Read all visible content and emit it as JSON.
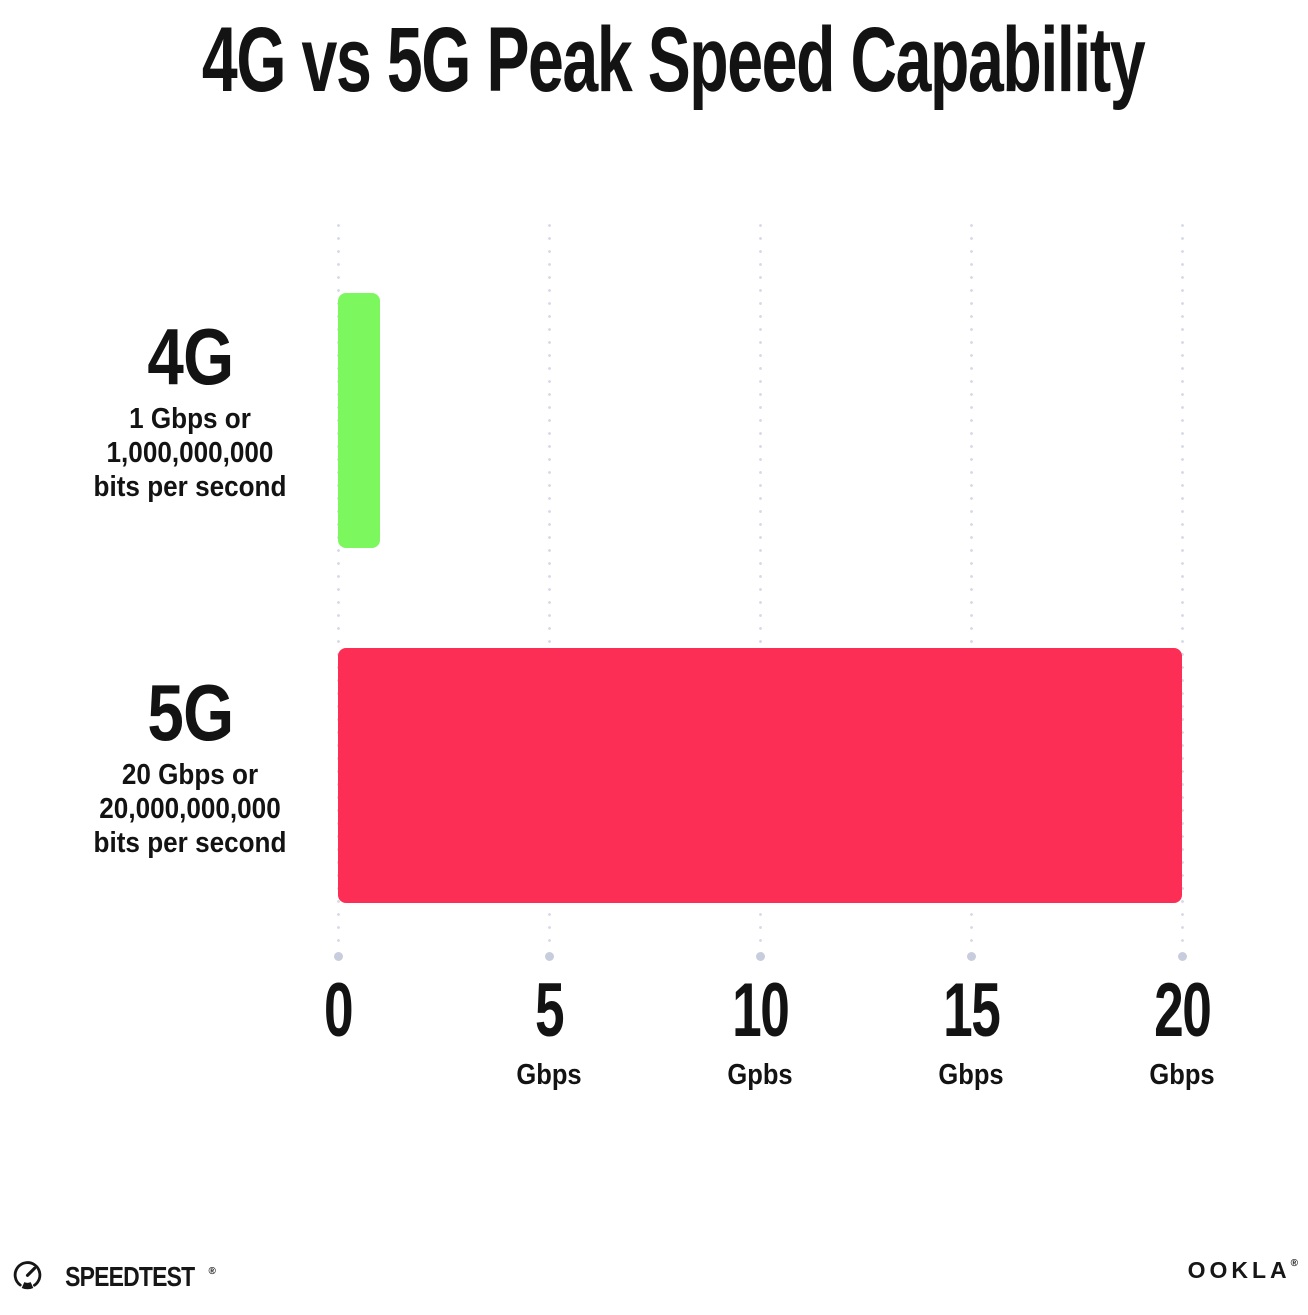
{
  "title": "4G vs 5G Peak Speed Capability",
  "chart_data": {
    "type": "bar",
    "orientation": "horizontal",
    "title": "4G vs 5G Peak Speed Capability",
    "categories": [
      "4G",
      "5G"
    ],
    "values": [
      1,
      20
    ],
    "value_unit": "Gbps",
    "row_sublabels": [
      [
        "1 Gbps or",
        "1,000,000,000",
        "bits per second"
      ],
      [
        "20 Gbps or",
        "20,000,000,000",
        "bits per second"
      ]
    ],
    "bar_colors": [
      "#7CF85E",
      "#FC2E56"
    ],
    "xlim": [
      0,
      20
    ],
    "x_ticks": [
      {
        "value": 0,
        "label": "0",
        "unit": ""
      },
      {
        "value": 5,
        "label": "5",
        "unit": "Gbps"
      },
      {
        "value": 10,
        "label": "10",
        "unit": "Gpbs"
      },
      {
        "value": 15,
        "label": "15",
        "unit": "Gbps"
      },
      {
        "value": 20,
        "label": "20",
        "unit": "Gbps"
      }
    ],
    "grid": "dotted-vertical",
    "grid_color": "#d9dce8",
    "legend": "none"
  },
  "footer": {
    "speedtest_label": "SPEEDTEST",
    "speedtest_mark": "®",
    "ookla_label": "OOKLA",
    "ookla_mark": "®"
  },
  "colors": {
    "background": "#ffffff",
    "text": "#131313",
    "bar_4g": "#7CF85E",
    "bar_5g": "#FC2E56",
    "grid_dot": "#d9dce8",
    "grid_end_dot": "#c8cddd"
  }
}
